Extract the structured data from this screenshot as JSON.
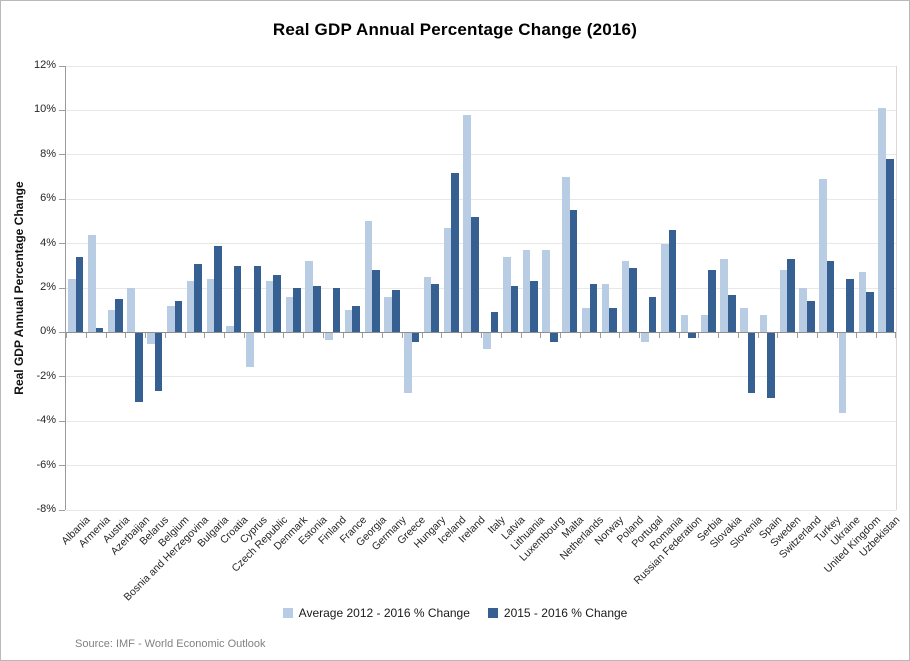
{
  "frame": {
    "border_color": "#b9b9b9",
    "background": "#ffffff"
  },
  "footer": {
    "source": "Source: IMF - World Economic Outlook"
  },
  "chart_data": {
    "type": "bar",
    "title": "Real GDP Annual Percentage Change (2016)",
    "ylabel": "Real GDP Annual Percentage Change",
    "xlabel": "",
    "ylim": [
      -8,
      12
    ],
    "ytick_step": 2,
    "ytick_labels": [
      "12%",
      "10%",
      "8%",
      "6%",
      "4%",
      "2%",
      "0%",
      "-2%",
      "-4%",
      "-6%",
      "-8%"
    ],
    "grid": true,
    "legend_position": "bottom",
    "axis_color": "#9c9c9c",
    "gridline_color": "#e8e8e8",
    "categories": [
      "Albania",
      "Armenia",
      "Austria",
      "Azerbaijan",
      "Belarus",
      "Belgium",
      "Bosnia and Herzegovina",
      "Bulgaria",
      "Croatia",
      "Cyprus",
      "Czech Republic",
      "Denmark",
      "Estonia",
      "Finland",
      "France",
      "Georgia",
      "Germany",
      "Greece",
      "Hungary",
      "Iceland",
      "Ireland",
      "Italy",
      "Latvia",
      "Lithuania",
      "Luxembourg",
      "Malta",
      "Netherlands",
      "Norway",
      "Poland",
      "Portugal",
      "Romania",
      "Russian Federation",
      "Serbia",
      "Slovakia",
      "Slovenia",
      "Spain",
      "Sweden",
      "Switzerland",
      "Turkey",
      "Ukraine",
      "United Kingdom",
      "Uzbekistan"
    ],
    "series": [
      {
        "name": "Average 2012 - 2016 % Change",
        "color": "#b8cce4",
        "values": [
          2.4,
          4.4,
          1.0,
          2.0,
          -0.5,
          1.2,
          2.3,
          2.4,
          0.3,
          -1.5,
          2.3,
          1.6,
          3.2,
          -0.3,
          1.0,
          5.0,
          1.6,
          -2.7,
          2.5,
          4.7,
          9.8,
          -0.7,
          3.4,
          3.7,
          3.7,
          7.0,
          1.1,
          2.2,
          3.2,
          -0.4,
          4.0,
          0.8,
          0.8,
          3.3,
          1.1,
          0.8,
          2.8,
          2.0,
          6.9,
          -3.6,
          2.7,
          10.1
        ]
      },
      {
        "name": "2015 - 2016 % Change",
        "color": "#376092",
        "values": [
          3.4,
          0.2,
          1.5,
          -3.1,
          -2.6,
          1.4,
          3.1,
          3.9,
          3.0,
          3.0,
          2.6,
          2.0,
          2.1,
          2.0,
          1.2,
          2.8,
          1.9,
          -0.4,
          2.2,
          7.2,
          5.2,
          0.9,
          2.1,
          2.3,
          -0.4,
          5.5,
          2.2,
          1.1,
          2.9,
          1.6,
          4.6,
          -0.2,
          2.8,
          1.7,
          -2.7,
          -2.9,
          3.3,
          1.4,
          3.2,
          2.4,
          1.8,
          7.8
        ]
      }
    ]
  }
}
